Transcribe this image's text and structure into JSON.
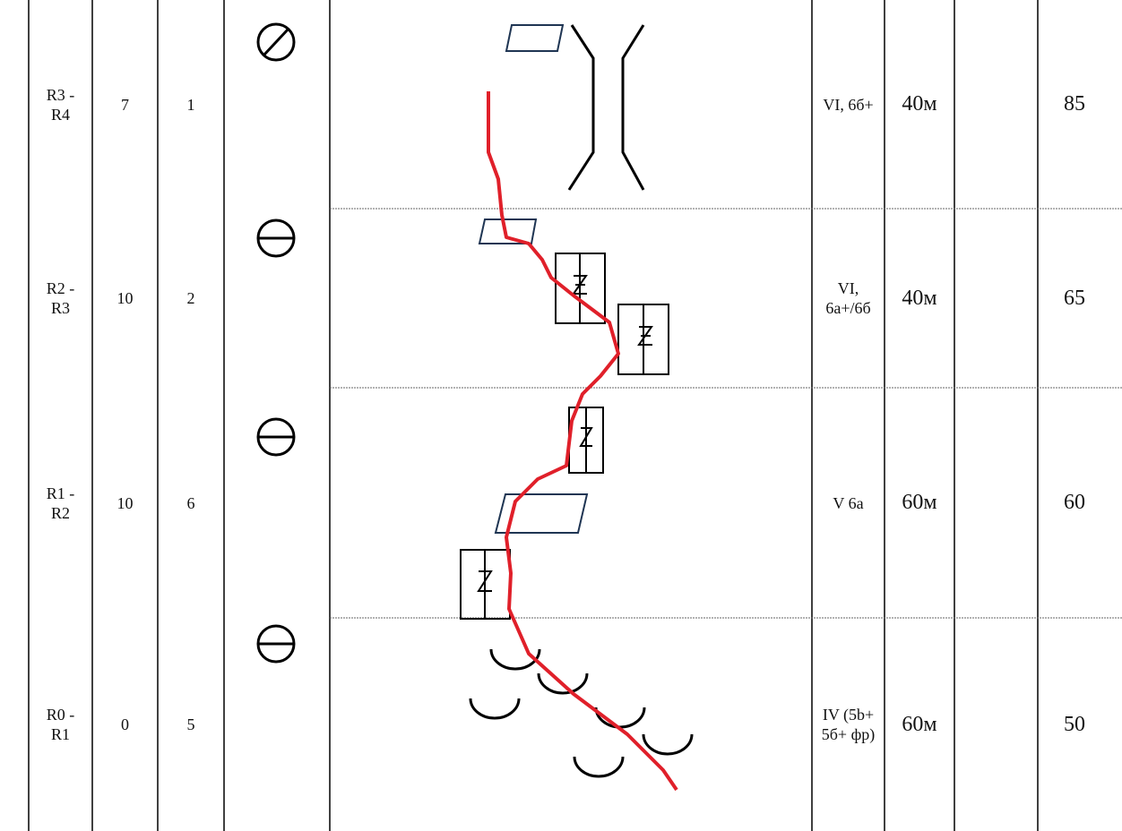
{
  "table": {
    "rows": [
      [
        "R3 - R4",
        7,
        1,
        "VI, 6б+",
        "40м",
        85
      ],
      [
        "R2 - R3",
        10,
        2,
        "VI, 6а+/6б",
        "40м",
        65
      ],
      [
        "R1 - R2",
        10,
        6,
        "V 6а",
        "60м",
        60
      ],
      [
        "R0 - R1",
        0,
        5,
        "IV (5b+ 5б+ фр)",
        "60м",
        50
      ]
    ]
  }
}
